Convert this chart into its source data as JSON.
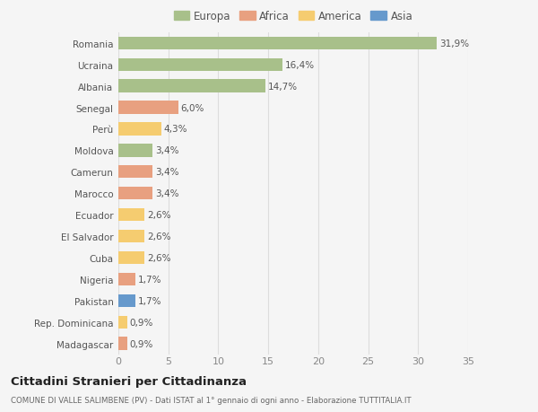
{
  "countries": [
    "Romania",
    "Ucraina",
    "Albania",
    "Senegal",
    "Perù",
    "Moldova",
    "Camerun",
    "Marocco",
    "Ecuador",
    "El Salvador",
    "Cuba",
    "Nigeria",
    "Pakistan",
    "Rep. Dominicana",
    "Madagascar"
  ],
  "values": [
    31.9,
    16.4,
    14.7,
    6.0,
    4.3,
    3.4,
    3.4,
    3.4,
    2.6,
    2.6,
    2.6,
    1.7,
    1.7,
    0.9,
    0.9
  ],
  "labels": [
    "31,9%",
    "16,4%",
    "14,7%",
    "6,0%",
    "4,3%",
    "3,4%",
    "3,4%",
    "3,4%",
    "2,6%",
    "2,6%",
    "2,6%",
    "1,7%",
    "1,7%",
    "0,9%",
    "0,9%"
  ],
  "continents": [
    "Europa",
    "Europa",
    "Europa",
    "Africa",
    "America",
    "Europa",
    "Africa",
    "Africa",
    "America",
    "America",
    "America",
    "Africa",
    "Asia",
    "America",
    "Africa"
  ],
  "continent_colors": {
    "Europa": "#a8c08a",
    "Africa": "#e8a080",
    "America": "#f5cc70",
    "Asia": "#6699cc"
  },
  "legend_order": [
    "Europa",
    "Africa",
    "America",
    "Asia"
  ],
  "legend_colors": [
    "#a8c08a",
    "#e8a080",
    "#f5cc70",
    "#6699cc"
  ],
  "title": "Cittadini Stranieri per Cittadinanza",
  "subtitle": "COMUNE DI VALLE SALIMBENE (PV) - Dati ISTAT al 1° gennaio di ogni anno - Elaborazione TUTTITALIA.IT",
  "xlim": [
    0,
    35
  ],
  "xticks": [
    0,
    5,
    10,
    15,
    20,
    25,
    30,
    35
  ],
  "background_color": "#f5f5f5",
  "grid_color": "#dddddd",
  "bar_height": 0.6
}
